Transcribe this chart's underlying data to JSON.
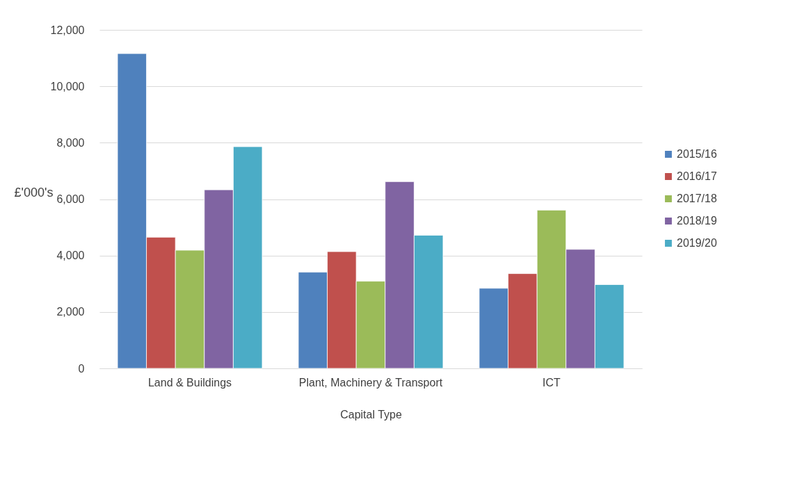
{
  "chart_data": {
    "type": "bar",
    "xlabel": "Capital Type",
    "ylabel": "£'000's",
    "categories": [
      "Land & Buildings",
      "Plant, Machinery & Transport",
      "ICT"
    ],
    "series": [
      {
        "name": "2015/16",
        "color": "#4f81bd",
        "values": [
          11160,
          3410,
          2840
        ]
      },
      {
        "name": "2016/17",
        "color": "#c0504d",
        "values": [
          4650,
          4140,
          3360
        ]
      },
      {
        "name": "2017/18",
        "color": "#9bbb59",
        "values": [
          4190,
          3090,
          5610
        ]
      },
      {
        "name": "2018/19",
        "color": "#8064a2",
        "values": [
          6330,
          6620,
          4220
        ]
      },
      {
        "name": "2019/20",
        "color": "#4bacc6",
        "values": [
          7860,
          4720,
          2970
        ]
      }
    ],
    "ylim": [
      0,
      12000
    ],
    "yticks": [
      0,
      {
        "value": 2000,
        "label": "2,000"
      },
      {
        "value": 4000,
        "label": "4,000"
      },
      {
        "value": 6000,
        "label": "6,000"
      },
      {
        "value": 8000,
        "label": "8,000"
      },
      {
        "value": 10000,
        "label": "10,000"
      },
      {
        "value": 12000,
        "label": "12,000"
      }
    ],
    "grid": "y",
    "legend": "right"
  }
}
